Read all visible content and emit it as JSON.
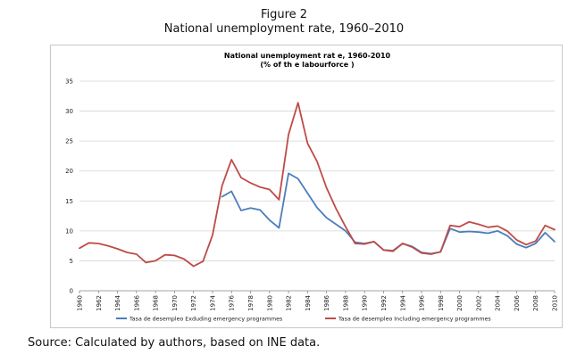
{
  "figure": {
    "title": "Figure 2",
    "subtitle": "National unemployment rate, 1960–2010"
  },
  "chart_data": {
    "type": "line",
    "title": "National unemployment rat e, 1960-2010",
    "subtitle": "(% of th e labourforce )",
    "xlabel": "",
    "ylabel": "",
    "ylim": [
      0,
      35
    ],
    "yticks": [
      0,
      5,
      10,
      15,
      20,
      25,
      30,
      35
    ],
    "xlim": [
      1960,
      2010
    ],
    "xticks": [
      1960,
      1962,
      1964,
      1966,
      1968,
      1970,
      1972,
      1974,
      1976,
      1978,
      1980,
      1982,
      1984,
      1986,
      1988,
      1990,
      1992,
      1994,
      1996,
      1998,
      2000,
      2002,
      2004,
      2006,
      2008,
      2010
    ],
    "grid": "horizontal",
    "legend_position": "bottom",
    "series": [
      {
        "name": "Tasa de desempleo Exduding emergency programmes",
        "color": "#4a7ebb",
        "x": [
          1975,
          1976,
          1977,
          1978,
          1979,
          1980,
          1981,
          1982,
          1983,
          1984,
          1985,
          1986,
          1987,
          1988,
          1989,
          1990,
          1991,
          1992,
          1993,
          1994,
          1995,
          1996,
          1997,
          1998,
          1999,
          2000,
          2001,
          2002,
          2003,
          2004,
          2005,
          2006,
          2007,
          2008,
          2009,
          2010
        ],
        "values": [
          15.7,
          16.6,
          13.4,
          13.8,
          13.5,
          11.8,
          10.5,
          19.6,
          18.7,
          16.3,
          13.9,
          12.2,
          11.1,
          10.0,
          8.1,
          7.9,
          8.2,
          6.8,
          6.7,
          7.9,
          7.4,
          6.4,
          6.2,
          6.5,
          10.4,
          9.8,
          9.9,
          9.8,
          9.6,
          10.0,
          9.2,
          7.8,
          7.2,
          7.9,
          9.7,
          8.2
        ]
      },
      {
        "name": "Tasa de desempleo Including emergency programmes",
        "color": "#be4b48",
        "x": [
          1960,
          1961,
          1962,
          1963,
          1964,
          1965,
          1966,
          1967,
          1968,
          1969,
          1970,
          1971,
          1972,
          1973,
          1974,
          1975,
          1976,
          1977,
          1978,
          1979,
          1980,
          1981,
          1982,
          1983,
          1984,
          1985,
          1986,
          1987,
          1988,
          1989,
          1990,
          1991,
          1992,
          1993,
          1994,
          1995,
          1996,
          1997,
          1998,
          1999,
          2000,
          2001,
          2002,
          2003,
          2004,
          2005,
          2006,
          2007,
          2008,
          2009,
          2010
        ],
        "values": [
          7.1,
          8.0,
          7.9,
          7.5,
          7.0,
          6.4,
          6.1,
          4.7,
          5.0,
          6.0,
          5.9,
          5.3,
          4.1,
          4.9,
          9.3,
          17.5,
          21.9,
          18.9,
          18.0,
          17.3,
          16.9,
          15.2,
          26.1,
          31.4,
          24.6,
          21.6,
          17.2,
          13.7,
          10.7,
          7.9,
          7.8,
          8.2,
          6.8,
          6.6,
          7.9,
          7.3,
          6.3,
          6.1,
          6.5,
          10.9,
          10.7,
          11.5,
          11.1,
          10.6,
          10.8,
          10.0,
          8.5,
          7.7,
          8.3,
          10.9,
          10.2
        ]
      }
    ]
  },
  "source": "Source:  Calculated by authors, based on INE data."
}
